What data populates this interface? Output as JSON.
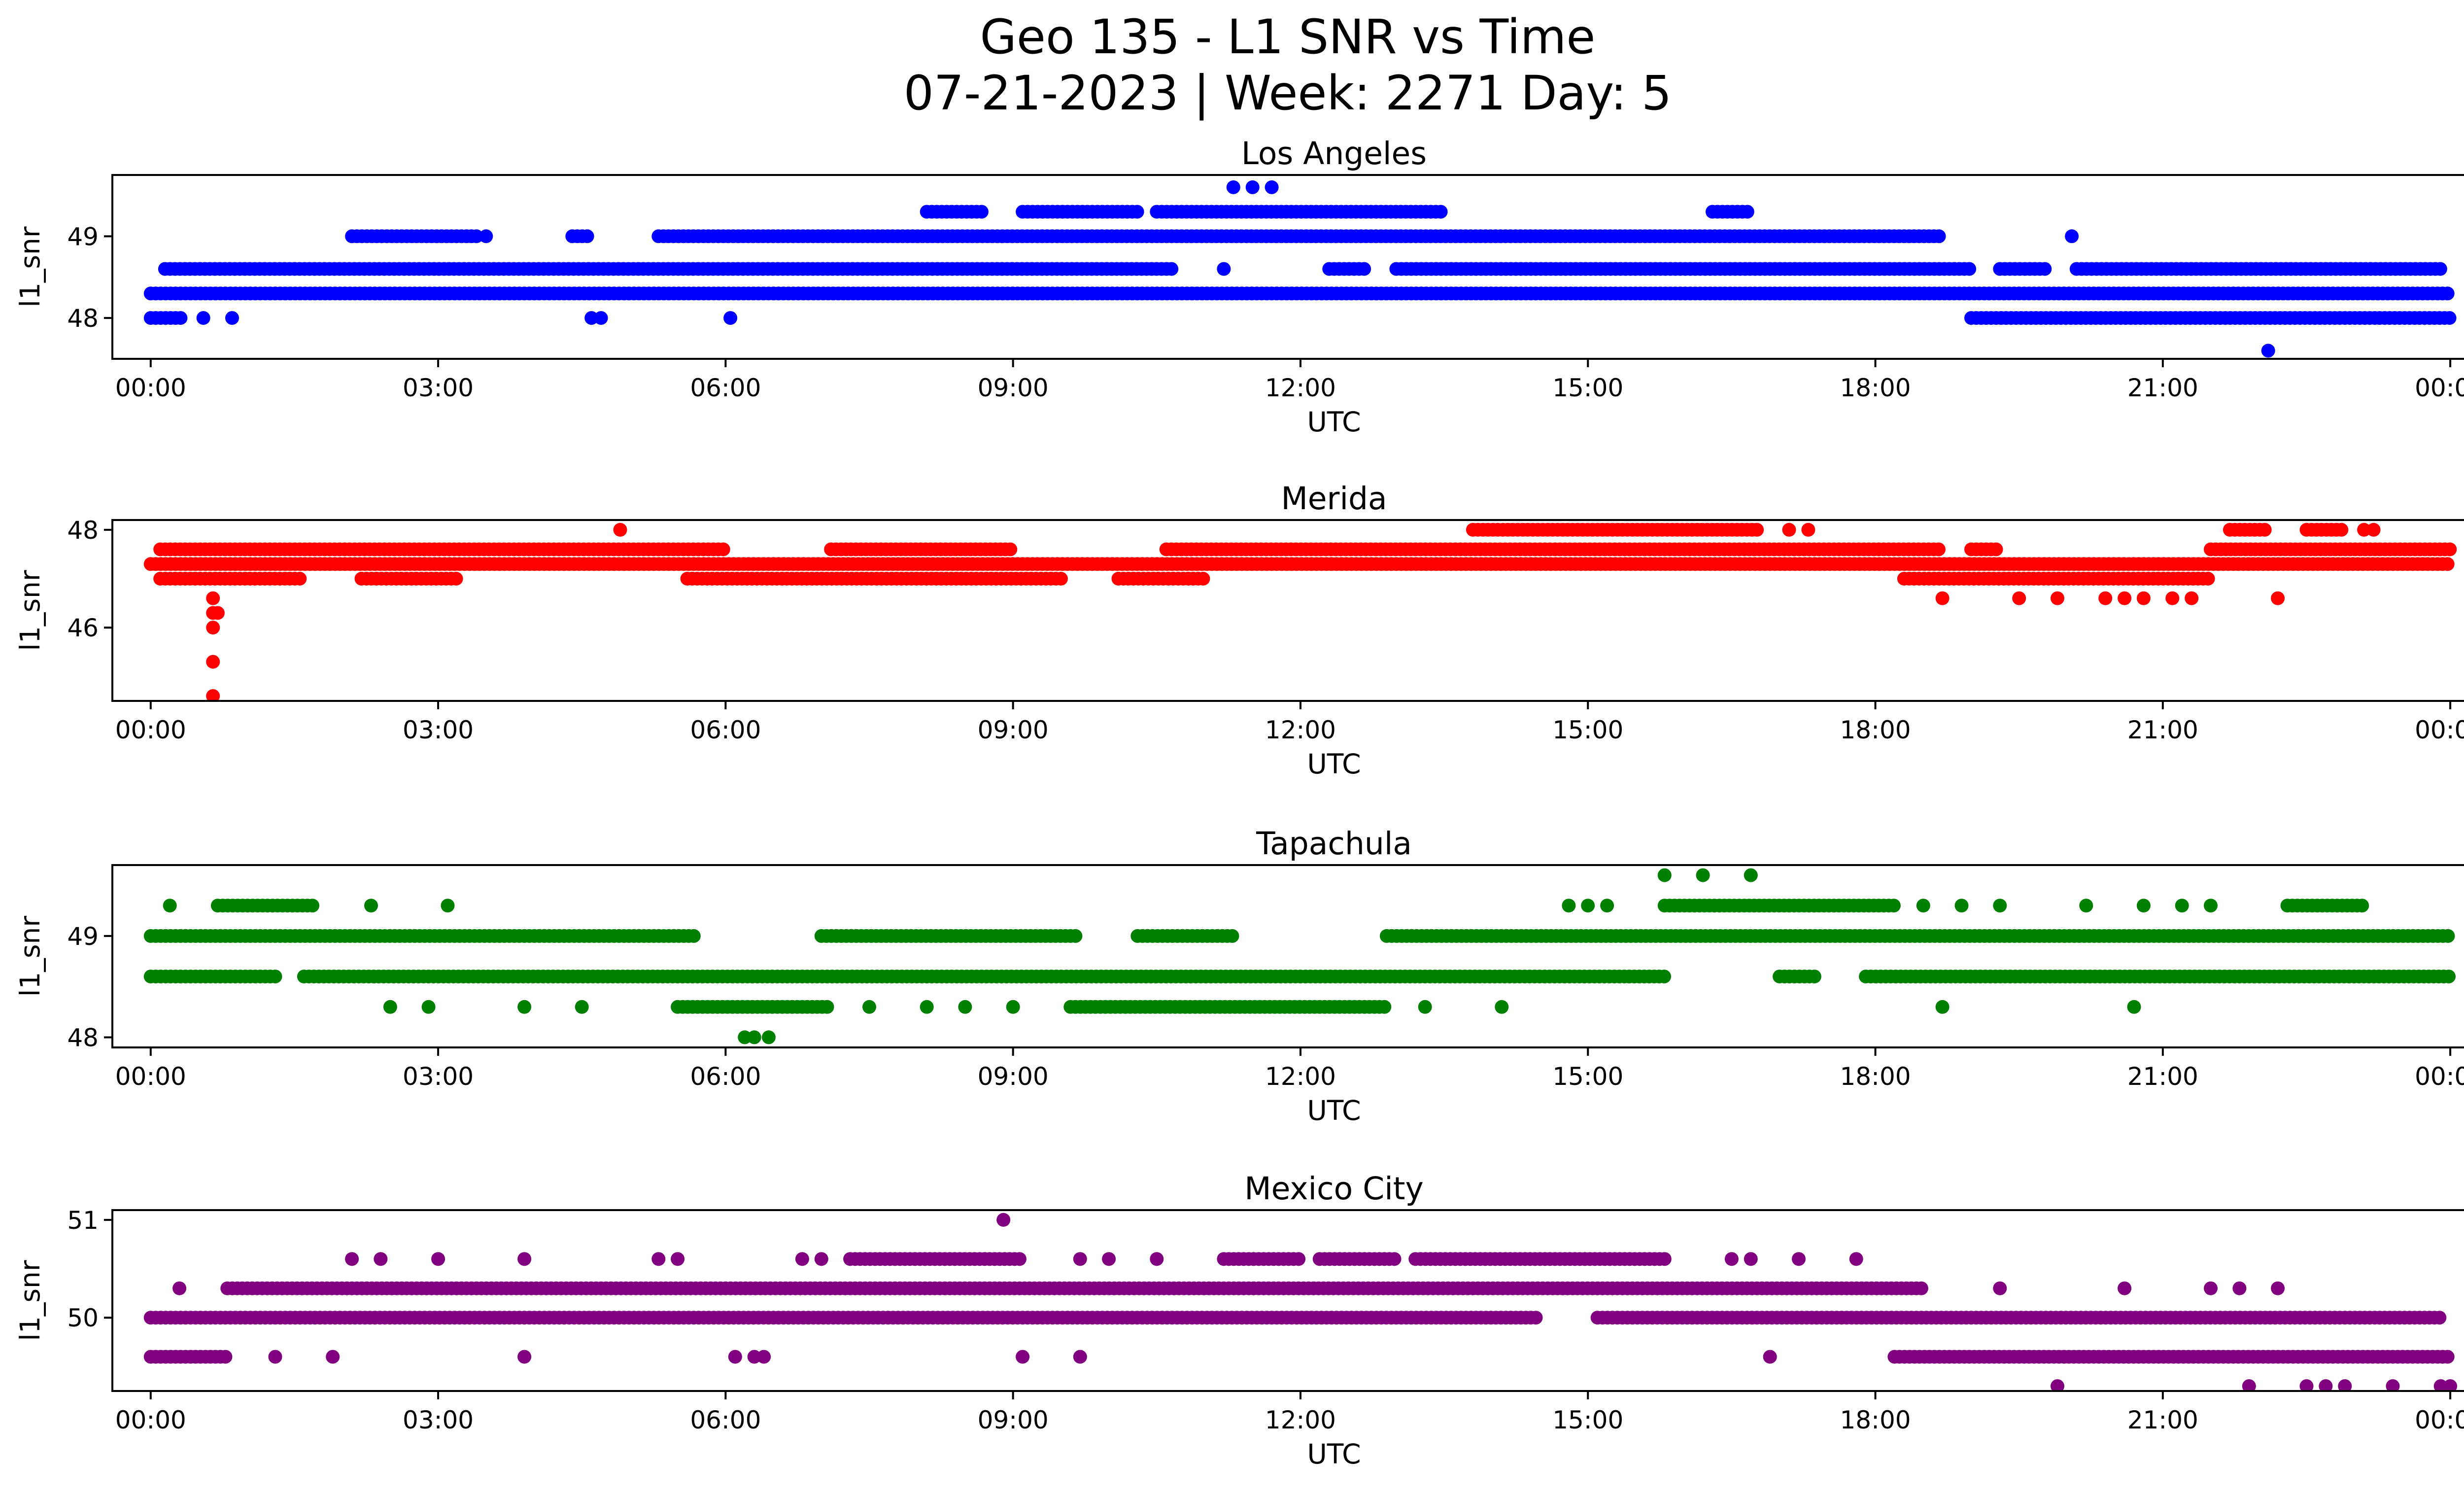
{
  "figure": {
    "title_line1": "Geo 135 - L1 SNR vs Time",
    "title_line2": "07-21-2023 | Week: 2271 Day: 5"
  },
  "chart_data": [
    {
      "type": "scatter",
      "title": "Los Angeles",
      "xlabel": "UTC",
      "ylabel": "l1_snr",
      "color": "#0000ff",
      "xlim": [
        -0.4,
        25.1
      ],
      "ylim": [
        47.5,
        49.75
      ],
      "xticks": [
        "00:00",
        "03:00",
        "06:00",
        "09:00",
        "12:00",
        "15:00",
        "18:00",
        "21:00",
        "00:00"
      ],
      "xtick_values": [
        0,
        3,
        6,
        9,
        12,
        15,
        18,
        21,
        24
      ],
      "yticks": [
        48,
        49
      ],
      "segments": [
        {
          "y": 48.3,
          "ranges": [
            [
              0,
              24
            ]
          ]
        },
        {
          "y": 48.6,
          "ranges": [
            [
              0.15,
              10.7
            ],
            [
              11.2,
              11.25
            ],
            [
              12.3,
              12.7
            ],
            [
              13.0,
              19.0
            ],
            [
              19.3,
              19.8
            ],
            [
              20.1,
              23.9
            ]
          ]
        },
        {
          "y": 49.0,
          "ranges": [
            [
              2.1,
              3.4
            ],
            [
              3.5,
              3.55
            ],
            [
              4.4,
              4.6
            ],
            [
              5.3,
              18.7
            ]
          ]
        },
        {
          "y": 48.0,
          "ranges": [
            [
              0,
              0.35
            ],
            [
              19.0,
              24
            ]
          ]
        },
        {
          "y": 49.3,
          "ranges": [
            [
              8.1,
              8.7
            ],
            [
              9.1,
              10.3
            ],
            [
              10.5,
              13.5
            ],
            [
              16.3,
              16.7
            ]
          ]
        }
      ],
      "points": [
        {
          "x": 0.55,
          "y": 48.0
        },
        {
          "x": 0.85,
          "y": 48.0
        },
        {
          "x": 4.6,
          "y": 48.0
        },
        {
          "x": 4.7,
          "y": 48.0
        },
        {
          "x": 6.05,
          "y": 48.0
        },
        {
          "x": 11.3,
          "y": 49.6
        },
        {
          "x": 11.5,
          "y": 49.6
        },
        {
          "x": 11.7,
          "y": 49.6
        },
        {
          "x": 20.05,
          "y": 49.0
        },
        {
          "x": 22.1,
          "y": 47.6
        }
      ]
    },
    {
      "type": "scatter",
      "title": "Merida",
      "xlabel": "UTC",
      "ylabel": "l1_snr",
      "color": "#ff0000",
      "xlim": [
        -0.4,
        25.1
      ],
      "ylim": [
        44.5,
        48.2
      ],
      "xticks": [
        "00:00",
        "03:00",
        "06:00",
        "09:00",
        "12:00",
        "15:00",
        "18:00",
        "21:00",
        "00:00"
      ],
      "xtick_values": [
        0,
        3,
        6,
        9,
        12,
        15,
        18,
        21,
        24
      ],
      "yticks": [
        46,
        48
      ],
      "segments": [
        {
          "y": 47.3,
          "ranges": [
            [
              0,
              24
            ]
          ]
        },
        {
          "y": 47.6,
          "ranges": [
            [
              0.1,
              6.0
            ],
            [
              7.1,
              9.0
            ],
            [
              10.6,
              18.7
            ],
            [
              19.0,
              19.3
            ],
            [
              21.5,
              24
            ]
          ]
        },
        {
          "y": 47.0,
          "ranges": [
            [
              0.1,
              1.6
            ],
            [
              2.2,
              3.2
            ],
            [
              5.6,
              9.5
            ],
            [
              10.1,
              11.0
            ],
            [
              18.3,
              21.5
            ]
          ]
        },
        {
          "y": 48.0,
          "ranges": [
            [
              13.8,
              16.8
            ],
            [
              21.7,
              22.1
            ],
            [
              22.5,
              22.9
            ]
          ]
        }
      ],
      "points": [
        {
          "x": 0.65,
          "y": 46.6
        },
        {
          "x": 0.65,
          "y": 46.3
        },
        {
          "x": 0.65,
          "y": 46.0
        },
        {
          "x": 0.65,
          "y": 45.3
        },
        {
          "x": 0.65,
          "y": 44.6
        },
        {
          "x": 0.7,
          "y": 46.3
        },
        {
          "x": 4.9,
          "y": 48.0
        },
        {
          "x": 17.1,
          "y": 48.0
        },
        {
          "x": 17.3,
          "y": 48.0
        },
        {
          "x": 23.1,
          "y": 48.0
        },
        {
          "x": 23.2,
          "y": 48.0
        },
        {
          "x": 18.7,
          "y": 46.6
        },
        {
          "x": 19.5,
          "y": 46.6
        },
        {
          "x": 19.9,
          "y": 46.6
        },
        {
          "x": 20.4,
          "y": 46.6
        },
        {
          "x": 20.6,
          "y": 46.6
        },
        {
          "x": 20.8,
          "y": 46.6
        },
        {
          "x": 21.1,
          "y": 46.6
        },
        {
          "x": 21.3,
          "y": 46.6
        },
        {
          "x": 22.2,
          "y": 46.6
        }
      ]
    },
    {
      "type": "scatter",
      "title": "Tapachula",
      "xlabel": "UTC",
      "ylabel": "l1_snr",
      "color": "#008000",
      "xlim": [
        -0.4,
        25.1
      ],
      "ylim": [
        47.9,
        49.7
      ],
      "xticks": [
        "00:00",
        "03:00",
        "06:00",
        "09:00",
        "12:00",
        "15:00",
        "18:00",
        "21:00",
        "00:00"
      ],
      "xtick_values": [
        0,
        3,
        6,
        9,
        12,
        15,
        18,
        21,
        24
      ],
      "yticks": [
        48,
        49
      ],
      "segments": [
        {
          "y": 49.0,
          "ranges": [
            [
              0,
              5.7
            ],
            [
              7.0,
              9.7
            ],
            [
              10.3,
              11.3
            ],
            [
              12.9,
              24
            ]
          ]
        },
        {
          "y": 48.6,
          "ranges": [
            [
              0,
              1.3
            ],
            [
              1.6,
              15.8
            ],
            [
              17.0,
              17.4
            ],
            [
              17.9,
              24
            ]
          ]
        },
        {
          "y": 48.3,
          "ranges": [
            [
              5.5,
              7.1
            ],
            [
              9.6,
              12.9
            ]
          ]
        },
        {
          "y": 49.3,
          "ranges": [
            [
              0.7,
              1.7
            ],
            [
              15.8,
              18.2
            ],
            [
              22.3,
              23.1
            ]
          ]
        }
      ],
      "points": [
        {
          "x": 0.2,
          "y": 49.3
        },
        {
          "x": 2.3,
          "y": 49.3
        },
        {
          "x": 3.1,
          "y": 49.3
        },
        {
          "x": 14.8,
          "y": 49.3
        },
        {
          "x": 15.0,
          "y": 49.3
        },
        {
          "x": 15.2,
          "y": 49.3
        },
        {
          "x": 18.5,
          "y": 49.3
        },
        {
          "x": 18.9,
          "y": 49.3
        },
        {
          "x": 19.3,
          "y": 49.3
        },
        {
          "x": 20.2,
          "y": 49.3
        },
        {
          "x": 20.8,
          "y": 49.3
        },
        {
          "x": 21.2,
          "y": 49.3
        },
        {
          "x": 21.5,
          "y": 49.3
        },
        {
          "x": 15.8,
          "y": 49.6
        },
        {
          "x": 16.2,
          "y": 49.6
        },
        {
          "x": 16.7,
          "y": 49.6
        },
        {
          "x": 2.5,
          "y": 48.3
        },
        {
          "x": 2.9,
          "y": 48.3
        },
        {
          "x": 3.9,
          "y": 48.3
        },
        {
          "x": 4.5,
          "y": 48.3
        },
        {
          "x": 7.5,
          "y": 48.3
        },
        {
          "x": 8.1,
          "y": 48.3
        },
        {
          "x": 8.5,
          "y": 48.3
        },
        {
          "x": 9.0,
          "y": 48.3
        },
        {
          "x": 13.3,
          "y": 48.3
        },
        {
          "x": 14.1,
          "y": 48.3
        },
        {
          "x": 18.7,
          "y": 48.3
        },
        {
          "x": 20.7,
          "y": 48.3
        },
        {
          "x": 6.2,
          "y": 48.0
        },
        {
          "x": 6.3,
          "y": 48.0
        },
        {
          "x": 6.45,
          "y": 48.0
        }
      ]
    },
    {
      "type": "scatter",
      "title": "Mexico City",
      "xlabel": "UTC",
      "ylabel": "l1_snr",
      "color": "#800080",
      "xlim": [
        -0.4,
        25.1
      ],
      "ylim": [
        49.25,
        51.1
      ],
      "xticks": [
        "00:00",
        "03:00",
        "06:00",
        "09:00",
        "12:00",
        "15:00",
        "18:00",
        "21:00",
        "00:00"
      ],
      "xtick_values": [
        0,
        3,
        6,
        9,
        12,
        15,
        18,
        21,
        24
      ],
      "yticks": [
        50,
        51
      ],
      "segments": [
        {
          "y": 50.0,
          "ranges": [
            [
              0,
              14.5
            ],
            [
              15.1,
              23.9
            ]
          ]
        },
        {
          "y": 50.3,
          "ranges": [
            [
              0.8,
              18.5
            ]
          ]
        },
        {
          "y": 49.6,
          "ranges": [
            [
              0,
              0.8
            ],
            [
              18.2,
              24
            ]
          ]
        },
        {
          "y": 50.6,
          "ranges": [
            [
              7.3,
              9.1
            ],
            [
              11.2,
              12.0
            ],
            [
              12.2,
              13.0
            ],
            [
              13.2,
              15.8
            ]
          ]
        }
      ],
      "points": [
        {
          "x": 0.3,
          "y": 50.3
        },
        {
          "x": 19.3,
          "y": 50.3
        },
        {
          "x": 20.6,
          "y": 50.3
        },
        {
          "x": 21.5,
          "y": 50.3
        },
        {
          "x": 21.8,
          "y": 50.3
        },
        {
          "x": 22.2,
          "y": 50.3
        },
        {
          "x": 2.1,
          "y": 50.6
        },
        {
          "x": 2.4,
          "y": 50.6
        },
        {
          "x": 3.0,
          "y": 50.6
        },
        {
          "x": 3.9,
          "y": 50.6
        },
        {
          "x": 5.3,
          "y": 50.6
        },
        {
          "x": 5.5,
          "y": 50.6
        },
        {
          "x": 6.8,
          "y": 50.6
        },
        {
          "x": 7.0,
          "y": 50.6
        },
        {
          "x": 9.7,
          "y": 50.6
        },
        {
          "x": 10.0,
          "y": 50.6
        },
        {
          "x": 10.5,
          "y": 50.6
        },
        {
          "x": 16.5,
          "y": 50.6
        },
        {
          "x": 16.7,
          "y": 50.6
        },
        {
          "x": 17.2,
          "y": 50.6
        },
        {
          "x": 17.8,
          "y": 50.6
        },
        {
          "x": 8.9,
          "y": 51.0
        },
        {
          "x": 1.3,
          "y": 49.6
        },
        {
          "x": 1.9,
          "y": 49.6
        },
        {
          "x": 3.9,
          "y": 49.6
        },
        {
          "x": 6.1,
          "y": 49.6
        },
        {
          "x": 6.3,
          "y": 49.6
        },
        {
          "x": 6.4,
          "y": 49.6
        },
        {
          "x": 9.1,
          "y": 49.6
        },
        {
          "x": 9.7,
          "y": 49.6
        },
        {
          "x": 16.9,
          "y": 49.6
        },
        {
          "x": 19.9,
          "y": 49.3
        },
        {
          "x": 21.9,
          "y": 49.3
        },
        {
          "x": 22.5,
          "y": 49.3
        },
        {
          "x": 22.7,
          "y": 49.3
        },
        {
          "x": 22.9,
          "y": 49.3
        },
        {
          "x": 23.4,
          "y": 49.3
        },
        {
          "x": 23.9,
          "y": 49.3
        },
        {
          "x": 24.0,
          "y": 49.3
        }
      ]
    }
  ]
}
